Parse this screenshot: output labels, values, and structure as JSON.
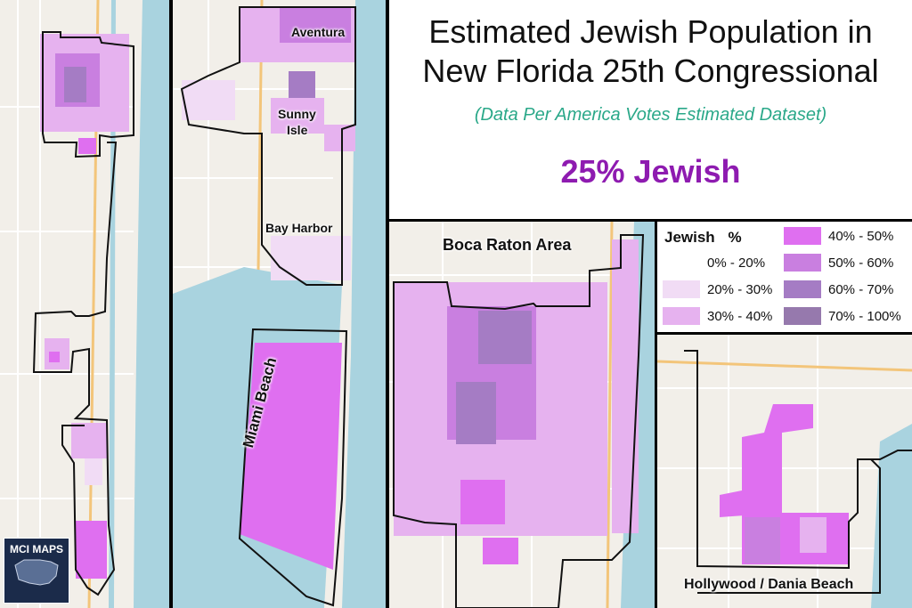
{
  "title": {
    "line1": "Estimated Jewish Population in",
    "line2": "New Florida 25th Congressional"
  },
  "subtitle": "(Data Per America Votes Estimated Dataset)",
  "headline_stat": "25% Jewish",
  "legend": {
    "header_name": "Jewish",
    "header_unit": "%",
    "items": [
      {
        "label": "0% - 20%",
        "color": "#ffffff"
      },
      {
        "label": "20% - 30%",
        "color": "#f1dcf5"
      },
      {
        "label": "30% - 40%",
        "color": "#e6b2ef"
      },
      {
        "label": "40% - 50%",
        "color": "#df6ff0"
      },
      {
        "label": "50% - 60%",
        "color": "#c97fe0"
      },
      {
        "label": "60% - 70%",
        "color": "#a57cc4"
      },
      {
        "label": "70% - 100%",
        "color": "#9679ad"
      }
    ]
  },
  "map_labels": {
    "aventura": "Aventura",
    "sunny": "Sunny",
    "isle": "Isle",
    "bay_harbor": "Bay Harbor",
    "miami_beach": "Miami Beach",
    "boca_raton": "Boca Raton Area",
    "hollywood": "Hollywood / Dania Beach"
  },
  "logo": {
    "text": "MCI MAPS"
  },
  "colors": {
    "water": "#a9d3df",
    "land": "#f2efe9",
    "district_outline": "#111111",
    "title_text": "#111111",
    "subtitle_text": "#2aa889",
    "stat_text": "#8e1bb0"
  }
}
